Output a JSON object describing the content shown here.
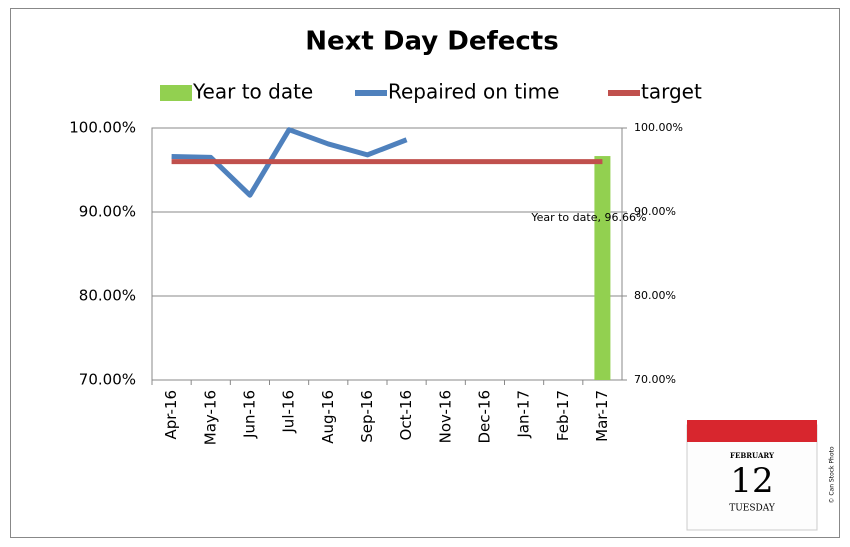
{
  "chart_data": {
    "type": "combo",
    "title": "Next Day Defects",
    "categories": [
      "Apr-16",
      "May-16",
      "Jun-16",
      "Jul-16",
      "Aug-16",
      "Sep-16",
      "Oct-16",
      "Nov-16",
      "Dec-16",
      "Jan-17",
      "Feb-17",
      "Mar-17"
    ],
    "series": [
      {
        "name": "Year to date",
        "type": "bar",
        "axis": "y2",
        "color": "#92d050",
        "values": [
          null,
          null,
          null,
          null,
          null,
          null,
          null,
          null,
          null,
          null,
          null,
          96.66
        ],
        "value_labels": [
          null,
          null,
          null,
          null,
          null,
          null,
          null,
          null,
          null,
          null,
          null,
          "Year to date, 96.66%"
        ]
      },
      {
        "name": "Repaired on time",
        "type": "line",
        "color": "#4f81bd",
        "values": [
          96.6,
          96.5,
          92.0,
          99.8,
          98.1,
          96.8,
          98.6,
          null,
          null,
          null,
          null,
          null
        ]
      },
      {
        "name": "target",
        "type": "line",
        "color": "#c0504d",
        "values": [
          96,
          96,
          96,
          96,
          96,
          96,
          96,
          96,
          96,
          96,
          96,
          96
        ]
      }
    ],
    "ylim": [
      70,
      100
    ],
    "yticks": [
      {
        "value": 70,
        "label": "70.00%"
      },
      {
        "value": 80,
        "label": "80.00%"
      },
      {
        "value": 90,
        "label": "90.00%"
      },
      {
        "value": 100,
        "label": "100.00%"
      }
    ],
    "y2lim": [
      70,
      100
    ],
    "y2ticks": [
      {
        "value": 70,
        "label": "70.00%"
      },
      {
        "value": 80,
        "label": "80.00%"
      },
      {
        "value": 90,
        "label": "90.00%"
      },
      {
        "value": 100,
        "label": "100.00%"
      }
    ],
    "grid": true,
    "legend": "top"
  },
  "calendar_image": {
    "month": "FEBRUARY",
    "day": "12",
    "weekday": "TUESDAY",
    "credit": "© Can Stock Photo"
  }
}
